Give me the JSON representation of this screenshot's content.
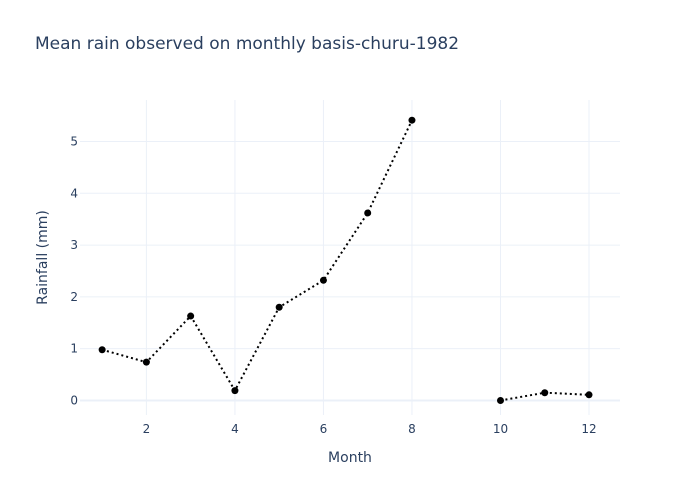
{
  "colors": {
    "grid": "#ebf0f8",
    "zeroline": "#ebf0f8",
    "text": "#2a3f5f",
    "series": "#000000",
    "background": "#ffffff"
  },
  "chart_data": {
    "type": "line",
    "title": "Mean rain observed on monthly basis-churu-1982",
    "xlabel": "Month",
    "ylabel": "Rainfall (mm)",
    "xlim": [
      0.5,
      12.7
    ],
    "ylim": [
      -0.28,
      5.8
    ],
    "x_ticks": [
      2,
      4,
      6,
      8,
      10,
      12
    ],
    "y_ticks": [
      0,
      1,
      2,
      3,
      4,
      5
    ],
    "grid": true,
    "legend": "none",
    "line_style": "dotted",
    "markers": true,
    "series": [
      {
        "x": [
          1,
          2,
          3,
          4,
          5,
          6,
          7,
          8,
          9,
          10,
          11,
          12
        ],
        "y": [
          0.98,
          0.74,
          1.63,
          0.19,
          1.8,
          2.32,
          3.62,
          5.41,
          null,
          0.0,
          0.15,
          0.11
        ]
      }
    ]
  }
}
